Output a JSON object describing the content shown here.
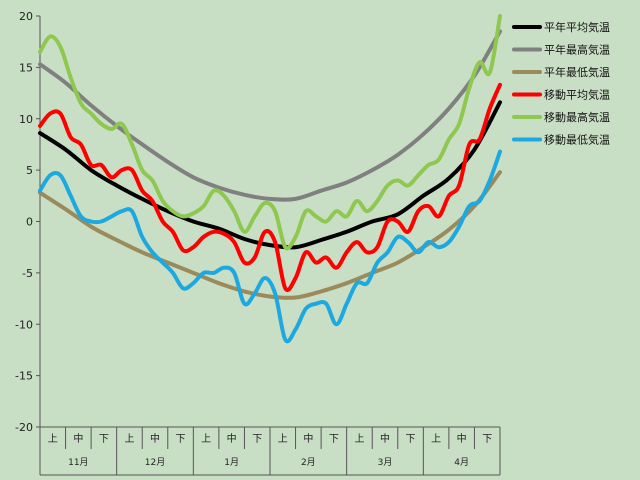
{
  "chart_data": {
    "type": "line",
    "title": "",
    "xlabel": "",
    "ylabel": "",
    "ylim": [
      -20,
      20
    ],
    "yticks": [
      "20",
      "15",
      "10",
      "5",
      "0",
      "-5",
      "-10",
      "-15",
      "-20"
    ],
    "grid": false,
    "legend_position": "right",
    "months": [
      "11月",
      "12月",
      "1月",
      "2月",
      "3月",
      "4月"
    ],
    "sub_periods": [
      "上",
      "中",
      "下"
    ],
    "x_range": [
      0,
      180
    ],
    "series": [
      {
        "name": "平年平均気温",
        "color": "#000000",
        "x": [
          0,
          10,
          20,
          30,
          40,
          50,
          60,
          70,
          80,
          90,
          100,
          110,
          120,
          130,
          140,
          150,
          160,
          170,
          180
        ],
        "y": [
          8.6,
          7.0,
          5.0,
          3.5,
          2.2,
          1.0,
          0.0,
          -0.7,
          -1.7,
          -2.3,
          -2.5,
          -1.8,
          -1.0,
          0.0,
          0.7,
          2.5,
          4.2,
          7.0,
          11.6
        ]
      },
      {
        "name": "平年最高気温",
        "color": "#808080",
        "x": [
          0,
          10,
          20,
          30,
          40,
          50,
          60,
          70,
          80,
          90,
          100,
          110,
          120,
          130,
          140,
          150,
          160,
          170,
          180
        ],
        "y": [
          15.3,
          13.5,
          11.3,
          9.3,
          7.5,
          5.8,
          4.3,
          3.3,
          2.6,
          2.2,
          2.2,
          3.0,
          3.8,
          5.0,
          6.5,
          8.5,
          11.0,
          14.2,
          18.5
        ]
      },
      {
        "name": "平年最低気温",
        "color": "#9a8a5c",
        "x": [
          0,
          10,
          20,
          30,
          40,
          50,
          60,
          70,
          80,
          90,
          100,
          110,
          120,
          130,
          140,
          150,
          160,
          170,
          180
        ],
        "y": [
          2.8,
          1.2,
          -0.5,
          -1.8,
          -3.0,
          -4.0,
          -5.0,
          -6.0,
          -6.8,
          -7.3,
          -7.4,
          -6.8,
          -6.0,
          -5.0,
          -4.0,
          -2.5,
          -0.8,
          1.5,
          4.8
        ]
      },
      {
        "name": "移動平均気温",
        "color": "#ff0000",
        "x": [
          0,
          4,
          8,
          12,
          16,
          20,
          24,
          28,
          32,
          36,
          40,
          44,
          48,
          52,
          56,
          60,
          64,
          68,
          72,
          76,
          80,
          84,
          88,
          92,
          96,
          100,
          104,
          108,
          112,
          116,
          120,
          124,
          128,
          132,
          136,
          140,
          144,
          148,
          152,
          156,
          160,
          164,
          168,
          172,
          176,
          180
        ],
        "y": [
          9.3,
          10.5,
          10.5,
          8.2,
          7.5,
          5.5,
          5.5,
          4.3,
          5.0,
          5.0,
          3.0,
          2.0,
          0.0,
          -1.0,
          -2.8,
          -2.5,
          -1.5,
          -1.0,
          -1.2,
          -2.0,
          -4.0,
          -3.5,
          -1.0,
          -2.0,
          -6.5,
          -5.5,
          -3.0,
          -4.0,
          -3.5,
          -4.5,
          -3.0,
          -2.0,
          -3.0,
          -2.5,
          0.0,
          0.0,
          -1.0,
          1.0,
          1.5,
          0.5,
          2.5,
          3.5,
          7.5,
          8.0,
          11.0,
          13.3
        ]
      },
      {
        "name": "移動最高気温",
        "color": "#8fc850",
        "x": [
          0,
          4,
          8,
          12,
          16,
          20,
          24,
          28,
          32,
          36,
          40,
          44,
          48,
          52,
          56,
          60,
          64,
          68,
          72,
          76,
          80,
          84,
          88,
          92,
          96,
          100,
          104,
          108,
          112,
          116,
          120,
          124,
          128,
          132,
          136,
          140,
          144,
          148,
          152,
          156,
          160,
          164,
          168,
          172,
          176,
          180
        ],
        "y": [
          16.5,
          18.0,
          17.0,
          14.0,
          11.5,
          10.5,
          9.5,
          9.0,
          9.5,
          7.5,
          5.0,
          4.0,
          2.0,
          1.0,
          0.5,
          0.8,
          1.5,
          3.0,
          2.5,
          1.0,
          -1.0,
          0.5,
          1.8,
          1.0,
          -2.5,
          -1.5,
          1.0,
          0.5,
          0.0,
          1.0,
          0.5,
          2.0,
          1.0,
          2.0,
          3.5,
          4.0,
          3.5,
          4.5,
          5.5,
          6.0,
          8.0,
          9.5,
          13.0,
          15.5,
          14.5,
          20.0
        ]
      },
      {
        "name": "移動最低気温",
        "color": "#1ea8e0",
        "x": [
          0,
          4,
          8,
          12,
          16,
          20,
          24,
          28,
          32,
          36,
          40,
          44,
          48,
          52,
          56,
          60,
          64,
          68,
          72,
          76,
          80,
          84,
          88,
          92,
          96,
          100,
          104,
          108,
          112,
          116,
          120,
          124,
          128,
          132,
          136,
          140,
          144,
          148,
          152,
          156,
          160,
          164,
          168,
          172,
          176,
          180
        ],
        "y": [
          3.0,
          4.5,
          4.5,
          2.5,
          0.5,
          0.0,
          0.0,
          0.5,
          1.0,
          1.0,
          -1.5,
          -3.0,
          -4.0,
          -5.0,
          -6.5,
          -6.0,
          -5.0,
          -5.0,
          -4.5,
          -5.0,
          -8.0,
          -7.0,
          -5.5,
          -7.0,
          -11.5,
          -10.5,
          -8.5,
          -8.0,
          -8.0,
          -10.0,
          -8.0,
          -6.0,
          -6.0,
          -4.0,
          -3.0,
          -1.5,
          -2.0,
          -3.0,
          -2.0,
          -2.5,
          -2.0,
          -0.5,
          1.5,
          2.0,
          4.0,
          6.8
        ]
      }
    ]
  }
}
